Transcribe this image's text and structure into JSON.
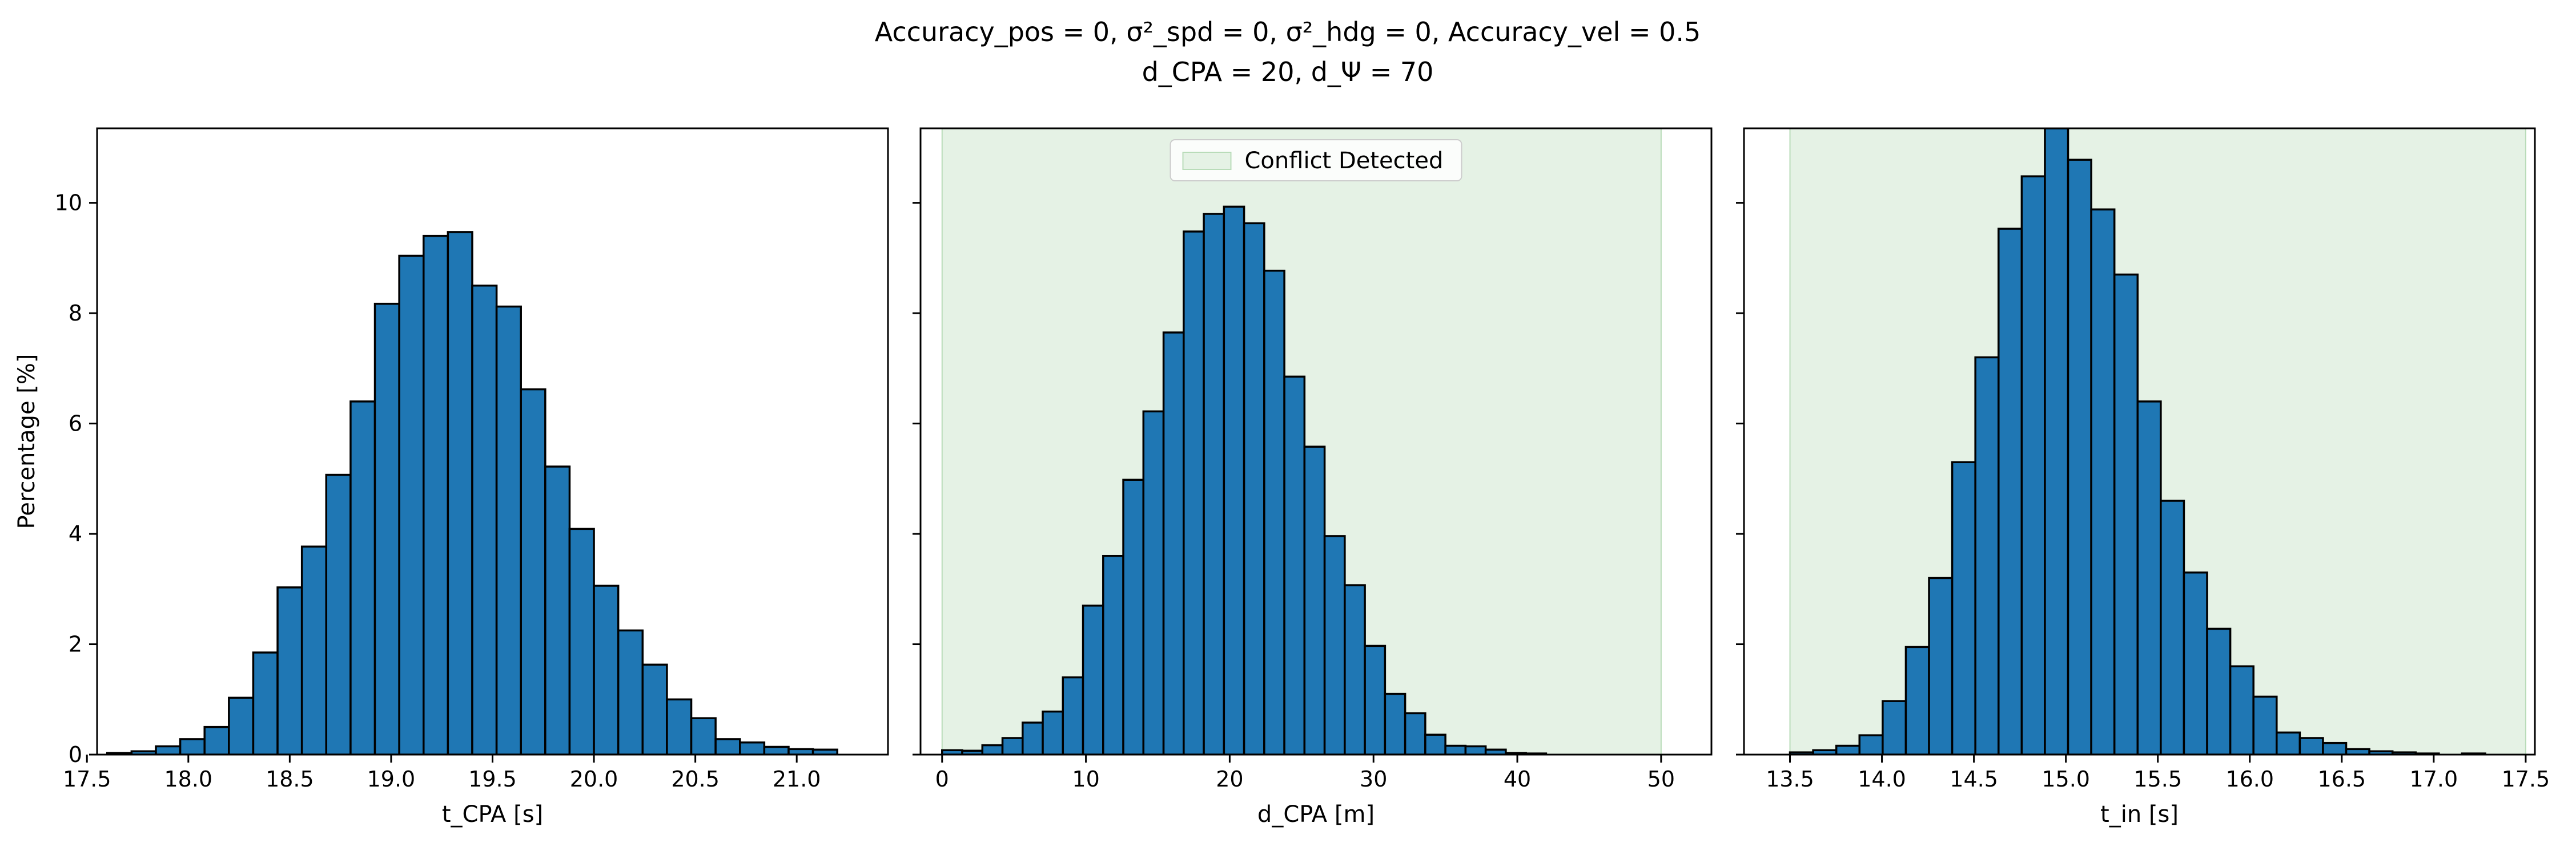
{
  "figure": {
    "title_line1": "Accuracy_pos = 0, σ²_spd = 0, σ²_hdg = 0, Accuracy_vel = 0.5",
    "title_line2": "d_CPA = 20, d_Ψ = 70"
  },
  "colors": {
    "bar_fill": "#1f77b4",
    "bar_edge": "#000000",
    "region_fill": "#e5f2e5",
    "region_edge": "#b9dcb9"
  },
  "chart_data": [
    {
      "type": "bar",
      "xlabel": "t_CPA [s]",
      "ylabel": "Percentage [%]",
      "xlim": [
        17.55,
        21.45
      ],
      "ylim": [
        0,
        11.35
      ],
      "xticks": [
        17.5,
        18.0,
        18.5,
        19.0,
        19.5,
        20.0,
        20.5,
        21.0
      ],
      "yticks": [
        0,
        2,
        4,
        6,
        8,
        10
      ],
      "bin_start": 17.6,
      "bin_width": 0.12,
      "values": [
        0.03,
        0.06,
        0.15,
        0.28,
        0.5,
        1.03,
        1.85,
        3.03,
        3.77,
        5.07,
        6.4,
        8.17,
        9.04,
        9.4,
        9.47,
        8.5,
        8.12,
        6.62,
        5.22,
        4.09,
        3.06,
        2.25,
        1.63,
        1.0,
        0.66,
        0.28,
        0.22,
        0.14,
        0.1,
        0.09
      ]
    },
    {
      "type": "bar",
      "xlabel": "d_CPA [m]",
      "ylabel": "",
      "xlim": [
        -1.5,
        53.5
      ],
      "ylim": [
        0,
        11.35
      ],
      "xticks": [
        0,
        10,
        20,
        30,
        40,
        50
      ],
      "yticks": [
        0,
        2,
        4,
        6,
        8,
        10
      ],
      "bin_start": 0,
      "bin_width": 1.4,
      "values": [
        0.08,
        0.07,
        0.17,
        0.3,
        0.58,
        0.78,
        1.4,
        2.7,
        3.6,
        4.98,
        6.22,
        7.65,
        9.48,
        9.8,
        9.93,
        9.63,
        8.77,
        6.85,
        5.58,
        3.96,
        3.07,
        1.97,
        1.1,
        0.75,
        0.36,
        0.16,
        0.15,
        0.09,
        0.03,
        0.02
      ],
      "region": {
        "label": "Conflict Detected",
        "x_start": 0,
        "x_end": 50
      },
      "legend_position": "upper center"
    },
    {
      "type": "bar",
      "xlabel": "t_in [s]",
      "ylabel": "",
      "xlim": [
        13.25,
        17.55
      ],
      "ylim": [
        0,
        11.35
      ],
      "xticks": [
        13.5,
        14.0,
        14.5,
        15.0,
        15.5,
        16.0,
        16.5,
        17.0,
        17.5
      ],
      "yticks": [
        0,
        2,
        4,
        6,
        8,
        10
      ],
      "bin_start": 13.5,
      "bin_width": 0.126,
      "values": [
        0.04,
        0.08,
        0.16,
        0.35,
        0.97,
        1.95,
        3.2,
        5.3,
        7.2,
        9.53,
        10.48,
        11.35,
        10.78,
        9.88,
        8.7,
        6.4,
        4.6,
        3.3,
        2.28,
        1.6,
        1.05,
        0.4,
        0.3,
        0.21,
        0.1,
        0.06,
        0.04,
        0.02,
        0.0,
        0.02
      ],
      "region": {
        "label": "Conflict Detected",
        "x_start": 13.5,
        "x_end": 17.5
      }
    }
  ]
}
